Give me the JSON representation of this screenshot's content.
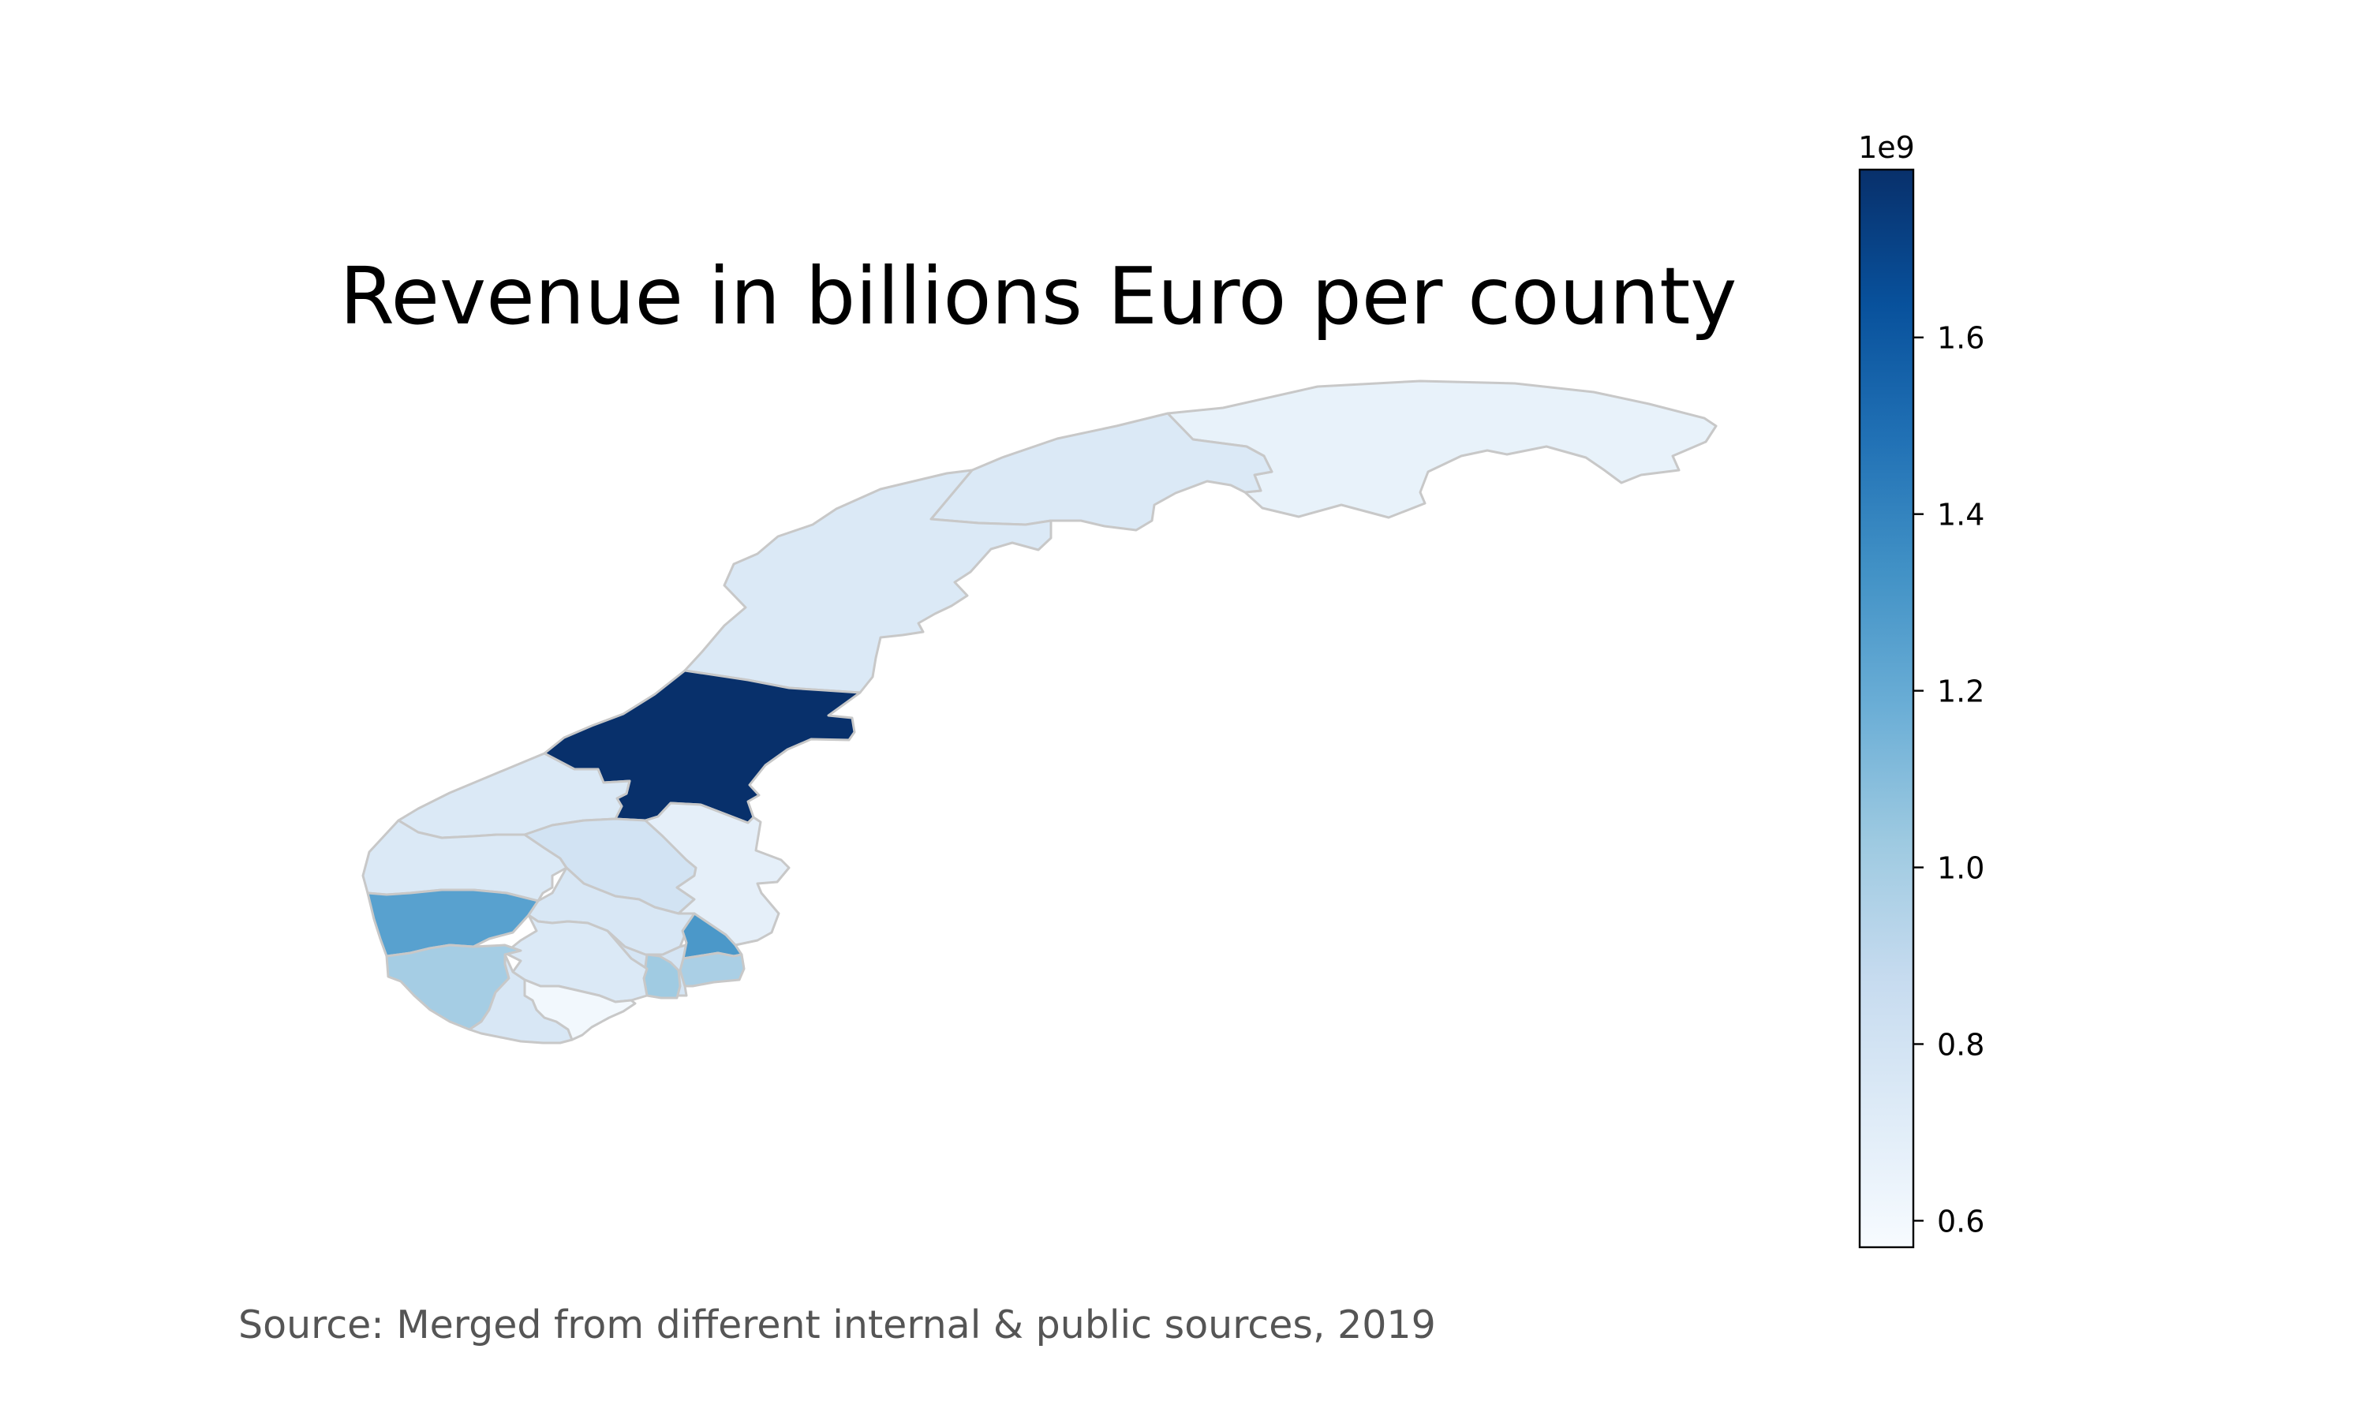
{
  "title": "Revenue in billions Euro per county",
  "source": "Source: Merged from different internal & public sources, 2019",
  "colorbar": {
    "exponent_label": "1e9",
    "min": 0.57,
    "max": 1.79,
    "ticks": [
      0.6,
      0.8,
      1.0,
      1.2,
      1.4,
      1.6
    ],
    "tick_labels": [
      "0.6",
      "0.8",
      "1.0",
      "1.2",
      "1.4",
      "1.6"
    ],
    "colormap": "Blues",
    "colors": [
      "#f7fbff",
      "#deebf7",
      "#c6dbef",
      "#9ecae1",
      "#6baed6",
      "#4292c6",
      "#2171b5",
      "#08519c",
      "#08306b"
    ]
  },
  "chart_data": {
    "type": "heatmap",
    "subtype": "choropleth",
    "region": "Norway",
    "value_unit": "1e9",
    "regions": [
      {
        "id": "finnmark",
        "value": 0.66
      },
      {
        "id": "troms",
        "value": 0.74
      },
      {
        "id": "nordland",
        "value": 0.74
      },
      {
        "id": "trondelag",
        "value": 1.79
      },
      {
        "id": "more-og-romsdal",
        "value": 0.74
      },
      {
        "id": "sogn-og-fjordane",
        "value": 0.74
      },
      {
        "id": "oppland",
        "value": 0.8
      },
      {
        "id": "hedmark",
        "value": 0.68
      },
      {
        "id": "hordaland",
        "value": 1.25
      },
      {
        "id": "buskerud",
        "value": 0.76
      },
      {
        "id": "akershus",
        "value": 0.78
      },
      {
        "id": "oslo",
        "value": 1.3
      },
      {
        "id": "ostfold",
        "value": 0.98
      },
      {
        "id": "vestfold",
        "value": 1.02
      },
      {
        "id": "telemark",
        "value": 0.74
      },
      {
        "id": "rogaland",
        "value": 1.0
      },
      {
        "id": "vest-agder",
        "value": 0.76
      },
      {
        "id": "aust-agder",
        "value": 0.6
      }
    ]
  }
}
